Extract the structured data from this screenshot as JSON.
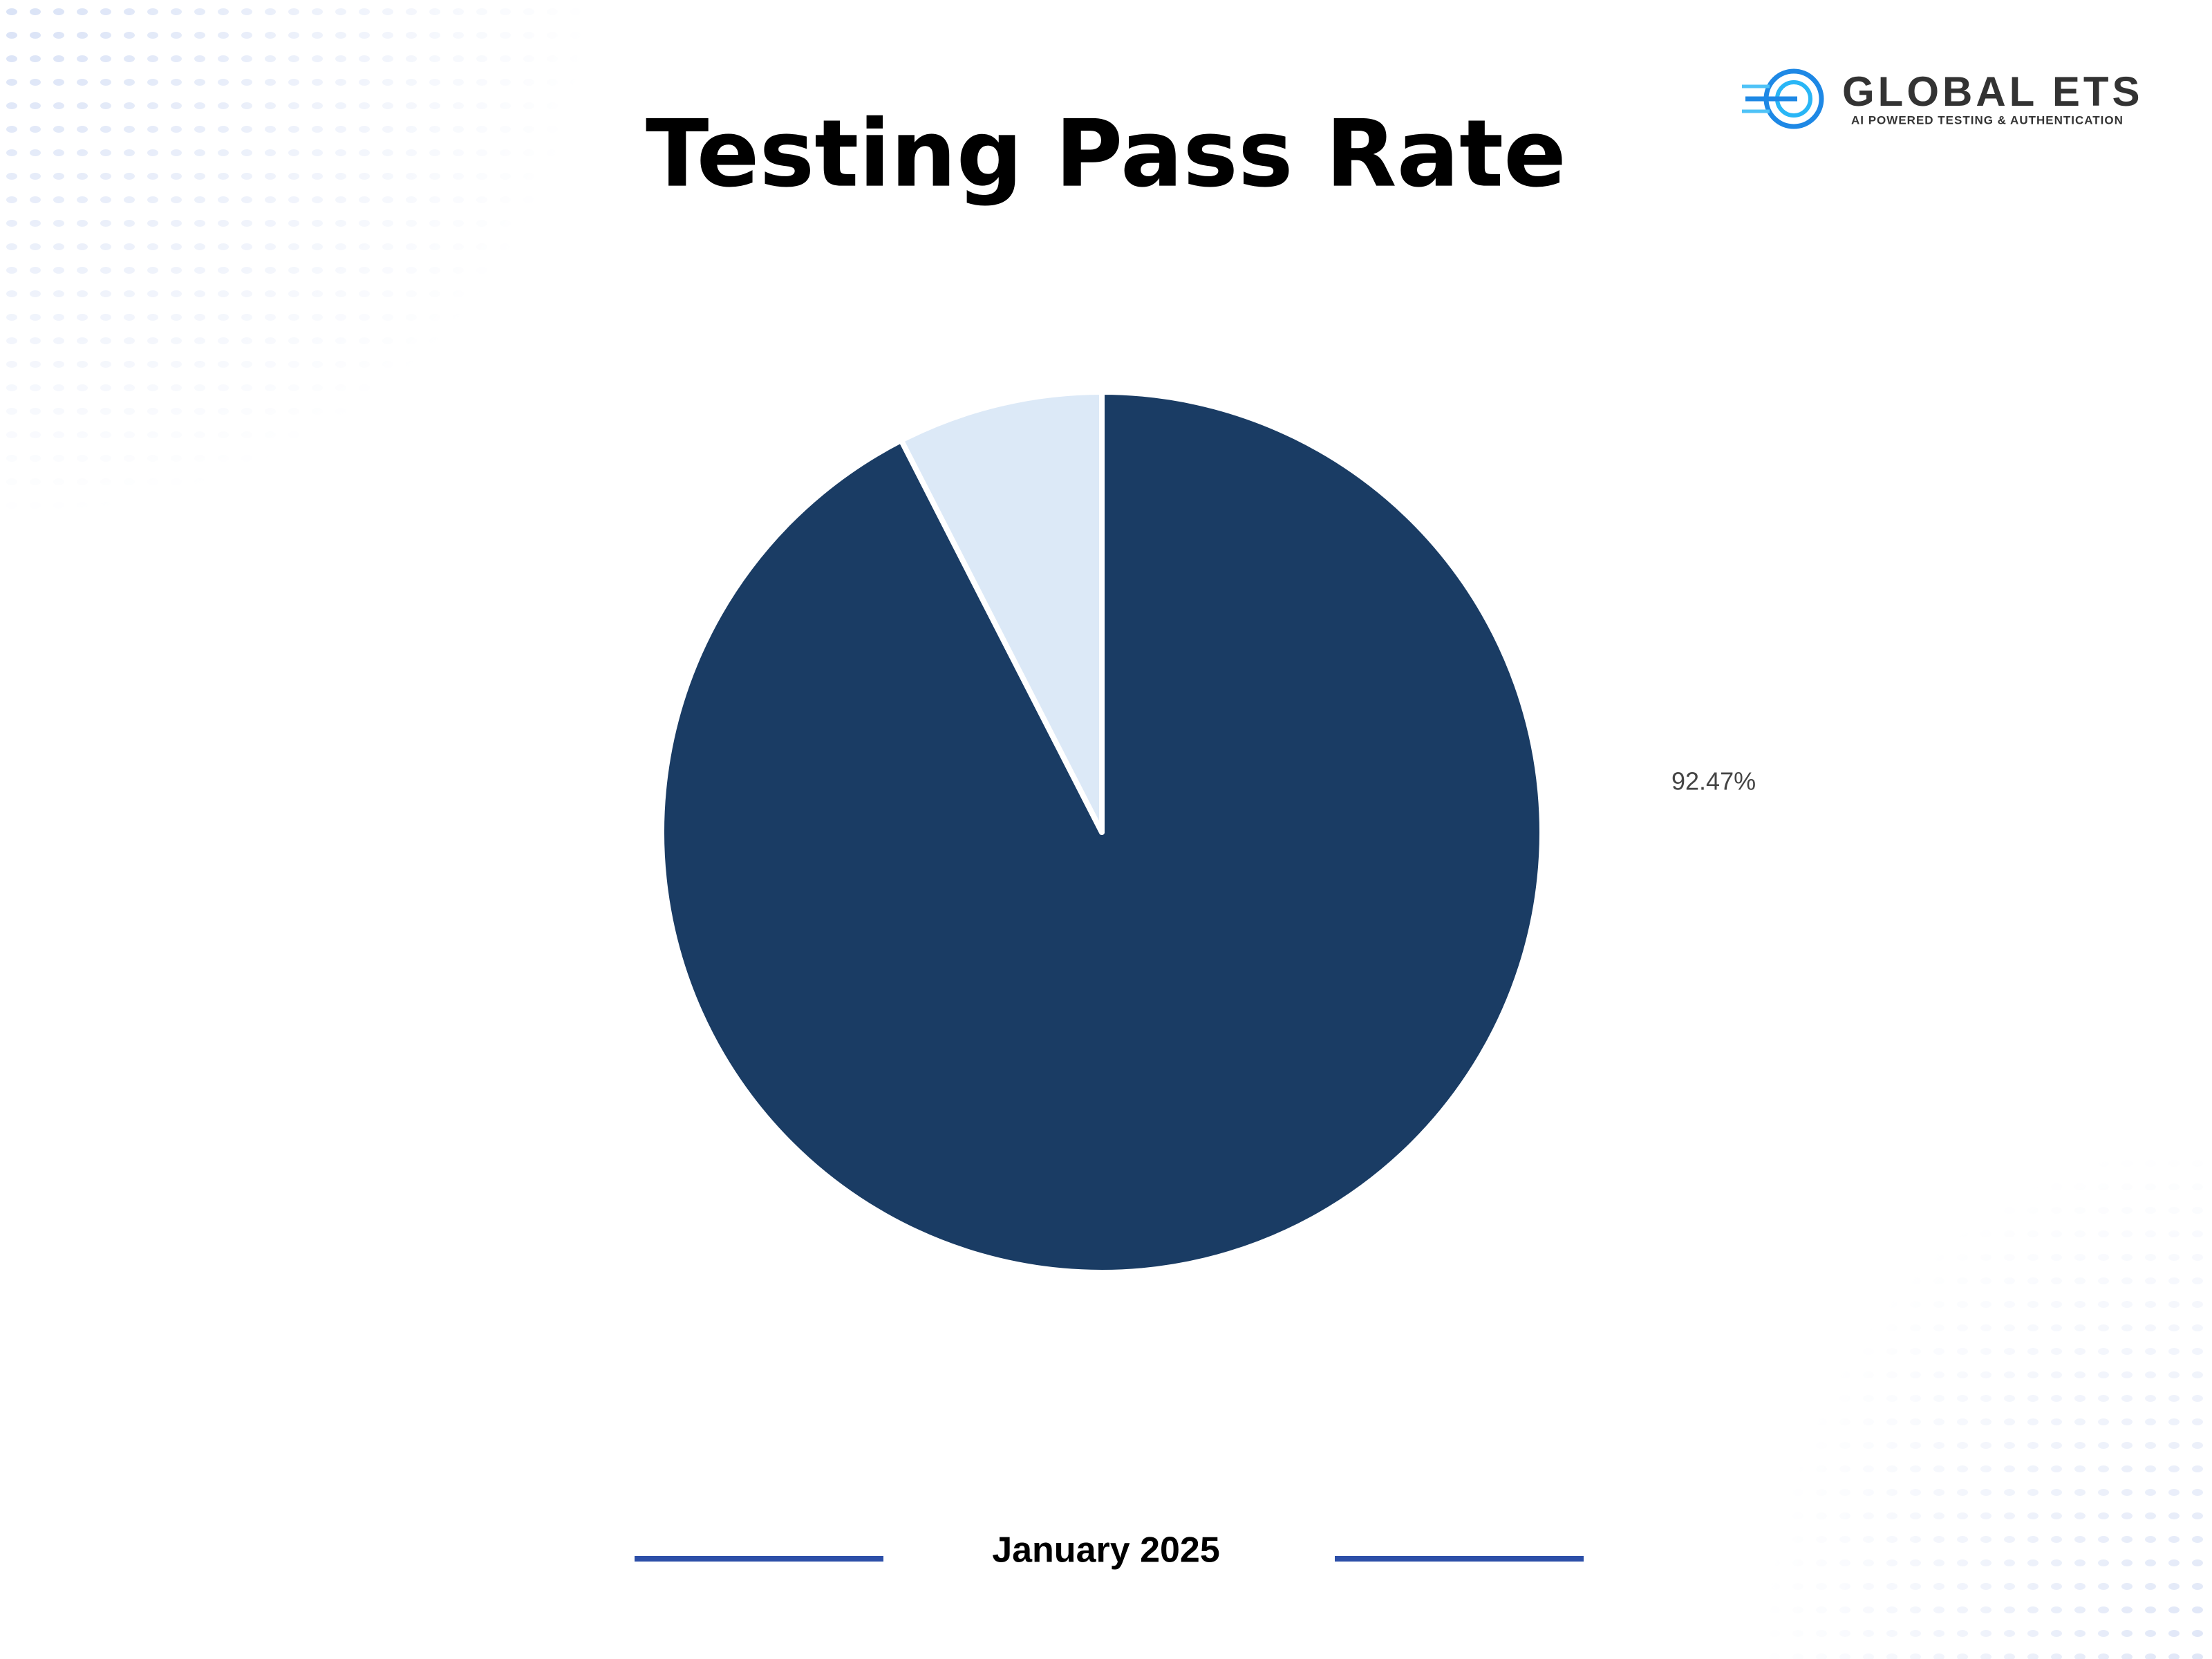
{
  "chart_data": {
    "type": "pie",
    "title": "Testing Pass Rate",
    "values": [
      92.47,
      7.53
    ],
    "value_labels": [
      "92.47%",
      null
    ],
    "colors": [
      "#1a3c64",
      "#dce9f7"
    ],
    "start_angle": 0,
    "direction": "clockwise"
  },
  "logo": {
    "name": "GLOBAL ETS",
    "tagline": "AI POWERED TESTING & AUTHENTICATION"
  },
  "footer": {
    "date": "January 2025"
  }
}
